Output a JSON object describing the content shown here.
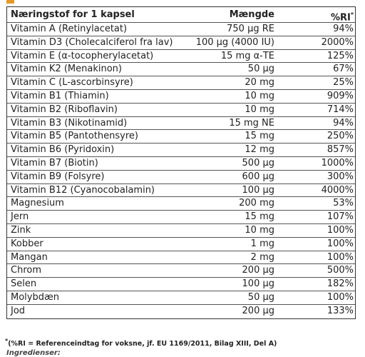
{
  "table": {
    "header": [
      "Næringstof for 1 kapsel",
      "Mængde",
      "%RI"
    ],
    "header_mark": "*",
    "rows": [
      [
        "Vitamin A (Retinylacetat)",
        "750 µg RE",
        "94%"
      ],
      [
        "Vitamin D3 (Cholecalciferol fra lav)",
        "100 µg (4000 IU)",
        "2000%"
      ],
      [
        "Vitamin E (α-tocopherylacetat)",
        "15 mg α-TE",
        "125%"
      ],
      [
        "Vitamin K2 (Menakinon)",
        "50 µg",
        "67%"
      ],
      [
        "Vitamin C (L-ascorbinsyre)",
        "20 mg",
        "25%"
      ],
      [
        "Vitamin B1 (Thiamin)",
        "10 mg",
        "909%"
      ],
      [
        "Vitamin B2 (Riboflavin)",
        "10 mg",
        "714%"
      ],
      [
        "Vitamin B3 (Nikotinamid)",
        "15 mg NE",
        "94%"
      ],
      [
        "Vitamin B5 (Pantothensyre)",
        "15 mg",
        "250%"
      ],
      [
        "Vitamin B6 (Pyridoxin)",
        "12 mg",
        "857%"
      ],
      [
        "Vitamin B7 (Biotin)",
        "500 µg",
        "1000%"
      ],
      [
        "Vitamin B9 (Folsyre)",
        "600 µg",
        "300%"
      ],
      [
        "Vitamin B12 (Cyanocobalamin)",
        "100 µg",
        "4000%"
      ],
      [
        "Magnesium",
        "200 mg",
        "53%"
      ],
      [
        "Jern",
        "15 mg",
        "107%"
      ],
      [
        "Zink",
        "10 mg",
        "100%"
      ],
      [
        "Kobber",
        "1 mg",
        "100%"
      ],
      [
        "Mangan",
        "2 mg",
        "100%"
      ],
      [
        "Chrom",
        "200 µg",
        "500%"
      ],
      [
        "Selen",
        "100 µg",
        "182%"
      ],
      [
        "Molybdæn",
        "50 µg",
        "100%"
      ],
      [
        "Jod",
        "200 µg",
        "133%"
      ]
    ]
  },
  "footnote": {
    "mark": "*",
    "text": "(%RI = Referenceindtag for voksne, jf. EU 1169/2011, Bilag XIII, Del A)"
  },
  "ingredients_label": "Ingredienser:"
}
